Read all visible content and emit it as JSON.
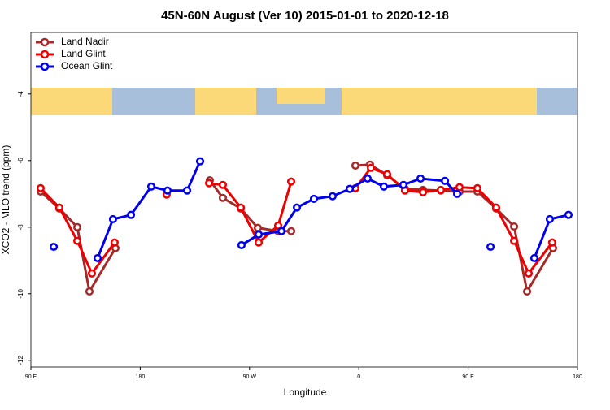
{
  "chart_data": {
    "type": "line",
    "title": "45N-60N August (Ver 10)   2015-01-01 to 2020-12-18",
    "x_label": "Longitude",
    "y_label": "XCO2 - MLO trend (ppm)",
    "xlim": [
      90,
      540
    ],
    "ylim": [
      -12.2,
      -2.15
    ],
    "xticks": [
      {
        "value": 90,
        "label": "90 E"
      },
      {
        "value": 180,
        "label": "180"
      },
      {
        "value": 270,
        "label": "90 W"
      },
      {
        "value": 360,
        "label": "0"
      },
      {
        "value": 450,
        "label": "90 E"
      },
      {
        "value": 540,
        "label": "180"
      }
    ],
    "yticks": [
      -4,
      -6,
      -8,
      -10,
      -12
    ],
    "legend": "top-left",
    "series": [
      {
        "name": "Land Nadir",
        "color": "#a52a2a",
        "x": [
          98,
          113.4,
          128.2,
          138.2,
          159.6,
          null,
          237.3,
          248,
          262.8,
          276.8,
          293.6,
          304.3,
          null,
          357.2,
          369.2,
          383.3,
          398,
          412.8,
          427.5,
          442.9,
          457.6,
          473,
          487.8,
          498.5,
          519.9
        ],
        "values": [
          -6.93,
          -7.44,
          -8.0,
          -9.93,
          -8.63,
          null,
          -6.59,
          -7.12,
          -7.44,
          -8.02,
          -8.12,
          -8.12,
          null,
          -6.15,
          -6.12,
          -6.44,
          -6.85,
          -6.88,
          -6.9,
          -6.93,
          -6.93,
          -7.44,
          -7.98,
          -9.93,
          -8.63
        ]
      },
      {
        "name": "Land Glint",
        "color": "#ee0000",
        "x": [
          98,
          113.4,
          128.2,
          140.2,
          158.9,
          null,
          201.8,
          null,
          236.7,
          248,
          262.8,
          277.5,
          293.6,
          304.3,
          null,
          357.2,
          369.9,
          383.3,
          398,
          412.8,
          427.5,
          442.9,
          457.6,
          473,
          487.8,
          499.8,
          519.2
        ],
        "values": [
          -6.83,
          -7.41,
          -8.41,
          -9.39,
          -8.46,
          null,
          -7.02,
          null,
          -6.68,
          -6.73,
          -7.41,
          -8.46,
          -7.95,
          -6.63,
          null,
          -6.83,
          -6.22,
          -6.41,
          -6.9,
          -6.95,
          -6.88,
          -6.8,
          -6.83,
          -7.41,
          -8.41,
          -9.39,
          -8.46
        ]
      },
      {
        "name": "Ocean Glint",
        "color": "#0000ee",
        "x": [
          108.8,
          null,
          144.9,
          157.6,
          172.4,
          189.1,
          202.5,
          218.6,
          229.3,
          null,
          263.4,
          277.5,
          296.3,
          309,
          323,
          338.4,
          352.5,
          367.2,
          380.6,
          396.7,
          410.8,
          430.9,
          440.9,
          null,
          468.4,
          null,
          504.5,
          517.2,
          532.6
        ],
        "values": [
          -8.59,
          null,
          -8.93,
          -7.76,
          -7.63,
          -6.78,
          -6.9,
          -6.9,
          -6.02,
          null,
          -8.54,
          -8.22,
          -8.12,
          -7.41,
          -7.15,
          -7.07,
          -6.85,
          -6.54,
          -6.78,
          -6.73,
          -6.54,
          -6.61,
          -7.0,
          null,
          -8.59,
          null,
          -8.93,
          -7.76,
          -7.63
        ]
      }
    ]
  }
}
